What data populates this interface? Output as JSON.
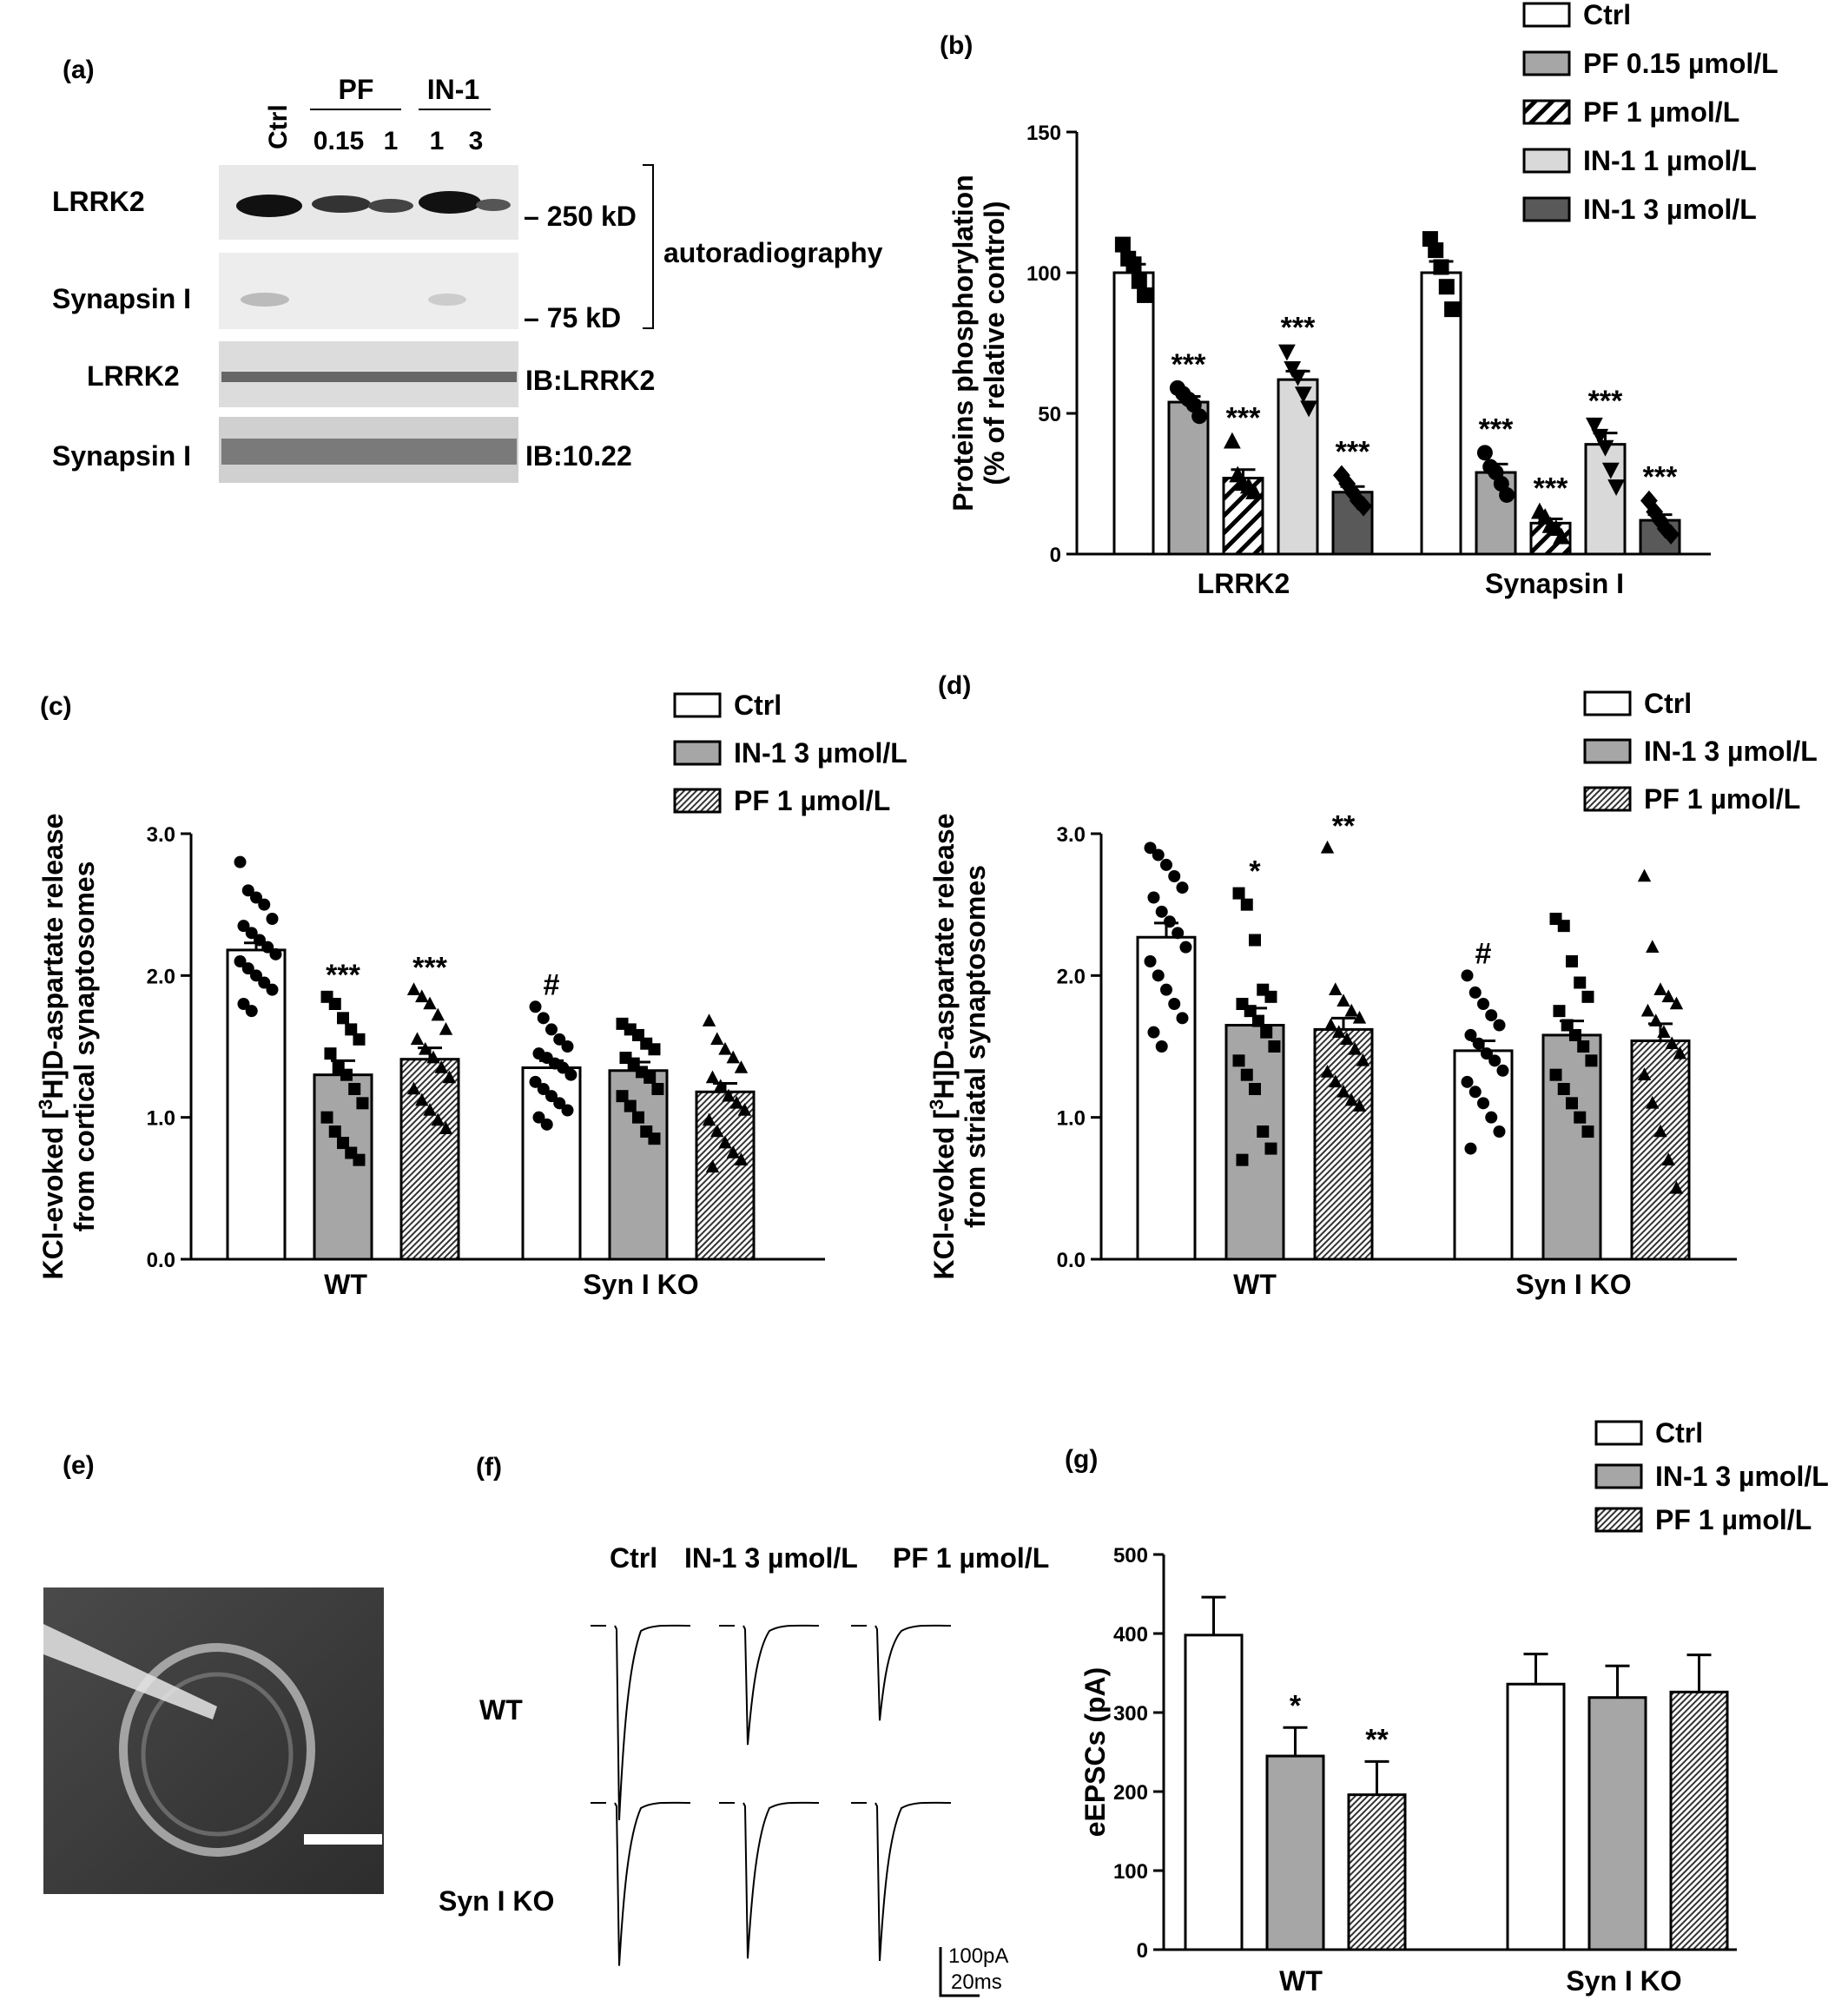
{
  "colors": {
    "ctrl": "#ffffff",
    "gray": "#a6a6a6",
    "light": "#d9d9d9",
    "dark": "#595959",
    "black": "#000000"
  },
  "panel_a": {
    "label": "(a)",
    "header_groups": [
      {
        "text": "PF"
      },
      {
        "text": "IN-1"
      }
    ],
    "lanes": [
      "Ctrl",
      "0.15",
      "1",
      "1",
      "3"
    ],
    "rows": [
      {
        "label": "LRRK2",
        "right": "– 250 kD"
      },
      {
        "label": "Synapsin I",
        "right": "– 75 kD"
      },
      {
        "label": "LRRK2",
        "right": "IB:LRRK2"
      },
      {
        "label": "Synapsin I",
        "right": "IB:10.22"
      }
    ],
    "bracket_label": "autoradiography"
  },
  "panel_e": {
    "label": "(e)"
  },
  "panel_f": {
    "label": "(f)",
    "columns": [
      "Ctrl",
      "IN-1 3 µmol/L",
      "PF 1 µmol/L"
    ],
    "rows": [
      "WT",
      "Syn I KO"
    ],
    "peaks_pA": [
      [
        400,
        245,
        195
      ],
      [
        335,
        320,
        325
      ]
    ],
    "scale_y": "100pA",
    "scale_x": "20ms"
  },
  "chart_data": [
    {
      "panel": "(b)",
      "type": "bar",
      "ylabel": [
        "Proteins phosphorylation",
        "(% of relative control)"
      ],
      "ylim": [
        0,
        150
      ],
      "yticks": [
        0,
        50,
        100,
        150
      ],
      "categories": [
        "LRRK2",
        "Synapsin I"
      ],
      "legend": [
        "Ctrl",
        "PF 0.15 µmol/L",
        "PF 1 µmol/L",
        "IN-1 1 µmol/L",
        "IN-1 3 µmol/L"
      ],
      "series": [
        {
          "name": "Ctrl",
          "values": [
            100,
            100
          ],
          "sem": [
            3,
            4
          ],
          "points": [
            [
              110,
              105,
              103,
              97,
              92
            ],
            [
              112,
              108,
              102,
              95,
              87
            ]
          ]
        },
        {
          "name": "PF 0.15 µmol/L",
          "values": [
            54,
            29
          ],
          "sem": [
            2,
            3
          ],
          "points": [
            [
              59,
              57,
              55,
              53,
              49
            ],
            [
              36,
              31,
              29,
              25,
              21
            ]
          ]
        },
        {
          "name": "PF 1 µmol/L",
          "values": [
            27,
            11
          ],
          "sem": [
            3,
            1.5
          ],
          "points": [
            [
              40,
              28,
              25,
              24,
              22
            ],
            [
              15,
              13,
              10,
              9,
              6
            ]
          ]
        },
        {
          "name": "IN-1 1 µmol/L",
          "values": [
            62,
            39
          ],
          "sem": [
            3,
            4
          ],
          "points": [
            [
              72,
              66,
              63,
              57,
              52
            ],
            [
              46,
              42,
              38,
              30,
              24
            ]
          ]
        },
        {
          "name": "IN-1 3 µmol/L",
          "values": [
            22,
            12
          ],
          "sem": [
            2,
            2
          ],
          "points": [
            [
              28,
              25,
              22,
              19,
              17
            ],
            [
              19,
              15,
              12,
              9,
              7
            ]
          ]
        }
      ],
      "annotations": [
        [
          "",
          "***",
          "***",
          "***",
          "***"
        ],
        [
          "",
          "***",
          "***",
          "***",
          "***"
        ]
      ]
    },
    {
      "panel": "(c)",
      "type": "bar",
      "ylabel": [
        "KCl-evoked [3H]D-aspartate release",
        "from cortical synaptosomes"
      ],
      "ylim": [
        0,
        3
      ],
      "yticks": [
        "0.0",
        "1.0",
        "2.0",
        "3.0"
      ],
      "categories": [
        "WT",
        "Syn I KO"
      ],
      "legend": [
        "Ctrl",
        "IN-1 3 µmol/L",
        "PF 1 µmol/L"
      ],
      "series": [
        {
          "name": "Ctrl",
          "values": [
            2.18,
            1.35
          ],
          "sem": [
            0.05,
            0.05
          ],
          "points": [
            [
              2.8,
              2.6,
              2.55,
              2.5,
              2.4,
              2.35,
              2.3,
              2.25,
              2.2,
              2.15,
              2.1,
              2.05,
              2.0,
              1.95,
              1.9,
              1.8,
              1.75
            ],
            [
              1.78,
              1.7,
              1.62,
              1.55,
              1.5,
              1.45,
              1.42,
              1.38,
              1.35,
              1.3,
              1.25,
              1.2,
              1.15,
              1.1,
              1.05,
              1.0,
              0.95
            ]
          ]
        },
        {
          "name": "IN-1 3 µmol/L",
          "values": [
            1.3,
            1.33
          ],
          "sem": [
            0.1,
            0.06
          ],
          "points": [
            [
              1.85,
              1.8,
              1.7,
              1.62,
              1.55,
              1.45,
              1.35,
              1.3,
              1.2,
              1.1,
              1.0,
              0.9,
              0.82,
              0.75,
              0.7
            ],
            [
              1.66,
              1.62,
              1.58,
              1.52,
              1.48,
              1.42,
              1.38,
              1.32,
              1.28,
              1.2,
              1.15,
              1.08,
              1.0,
              0.9,
              0.85
            ]
          ]
        },
        {
          "name": "PF 1 µmol/L",
          "values": [
            1.41,
            1.18
          ],
          "sem": [
            0.08,
            0.06
          ],
          "points": [
            [
              1.9,
              1.85,
              1.8,
              1.72,
              1.62,
              1.55,
              1.48,
              1.42,
              1.35,
              1.28,
              1.2,
              1.12,
              1.05,
              0.98,
              0.92
            ],
            [
              1.68,
              1.55,
              1.48,
              1.42,
              1.35,
              1.28,
              1.22,
              1.15,
              1.1,
              1.05,
              0.98,
              0.9,
              0.82,
              0.75,
              0.7,
              0.65
            ]
          ]
        }
      ],
      "annotations": [
        [
          "",
          "***",
          "***"
        ],
        [
          "#",
          "",
          ""
        ]
      ]
    },
    {
      "panel": "(d)",
      "type": "bar",
      "ylabel": [
        "KCl-evoked [3H]D-aspartate release",
        "from striatal synaptosomes"
      ],
      "ylim": [
        0,
        3
      ],
      "yticks": [
        "0.0",
        "1.0",
        "2.0",
        "3.0"
      ],
      "categories": [
        "WT",
        "Syn I KO"
      ],
      "legend": [
        "Ctrl",
        "IN-1 3 µmol/L",
        "PF 1 µmol/L"
      ],
      "series": [
        {
          "name": "Ctrl",
          "values": [
            2.27,
            1.47
          ],
          "sem": [
            0.1,
            0.07
          ],
          "points": [
            [
              2.9,
              2.85,
              2.78,
              2.7,
              2.62,
              2.55,
              2.45,
              2.38,
              2.3,
              2.2,
              2.1,
              2.0,
              1.9,
              1.8,
              1.7,
              1.6,
              1.5
            ],
            [
              2.0,
              1.88,
              1.8,
              1.72,
              1.65,
              1.58,
              1.52,
              1.45,
              1.4,
              1.33,
              1.25,
              1.18,
              1.1,
              1.0,
              0.9,
              0.78
            ]
          ]
        },
        {
          "name": "IN-1 3 µmol/L",
          "values": [
            1.65,
            1.58
          ],
          "sem": [
            0.12,
            0.1
          ],
          "points": [
            [
              2.58,
              2.5,
              2.25,
              1.9,
              1.85,
              1.8,
              1.75,
              1.68,
              1.6,
              1.5,
              1.4,
              1.3,
              1.2,
              0.9,
              0.78,
              0.7
            ],
            [
              2.4,
              2.35,
              2.1,
              1.95,
              1.85,
              1.75,
              1.65,
              1.58,
              1.5,
              1.4,
              1.3,
              1.2,
              1.1,
              1.0,
              0.9
            ]
          ]
        },
        {
          "name": "PF 1 µmol/L",
          "values": [
            1.62,
            1.54
          ],
          "sem": [
            0.08,
            0.12
          ],
          "points": [
            [
              2.9,
              1.9,
              1.82,
              1.75,
              1.7,
              1.65,
              1.6,
              1.55,
              1.48,
              1.4,
              1.32,
              1.25,
              1.18,
              1.12,
              1.08
            ],
            [
              2.7,
              2.2,
              1.9,
              1.85,
              1.8,
              1.75,
              1.68,
              1.6,
              1.52,
              1.45,
              1.3,
              1.1,
              0.9,
              0.7,
              0.5
            ]
          ]
        }
      ],
      "annotations": [
        [
          "",
          "*",
          "**"
        ],
        [
          "#",
          "",
          ""
        ]
      ]
    },
    {
      "panel": "(g)",
      "type": "bar",
      "ylabel": [
        "eEPSCs (pA)"
      ],
      "ylim": [
        0,
        500
      ],
      "yticks": [
        0,
        100,
        200,
        300,
        400,
        500
      ],
      "categories": [
        "WT",
        "Syn I KO"
      ],
      "legend": [
        "Ctrl",
        "IN-1 3 µmol/L",
        "PF 1 µmol/L"
      ],
      "series": [
        {
          "name": "Ctrl",
          "values": [
            398,
            336
          ],
          "sem": [
            48,
            38
          ]
        },
        {
          "name": "IN-1 3 µmol/L",
          "values": [
            245,
            319
          ],
          "sem": [
            36,
            40
          ]
        },
        {
          "name": "PF 1 µmol/L",
          "values": [
            196,
            326
          ],
          "sem": [
            42,
            47
          ]
        }
      ],
      "annotations": [
        [
          "",
          "*",
          "**"
        ],
        [
          "",
          "",
          ""
        ]
      ]
    }
  ]
}
